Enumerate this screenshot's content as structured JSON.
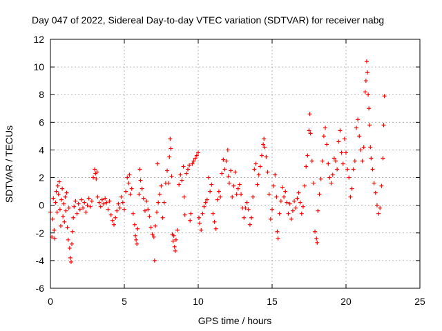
{
  "chart_data": {
    "type": "scatter",
    "title": "Day 047 of 2022, Sidereal Day-to-day VTEC variation (SDTVAR) for receiver nabg",
    "xlabel": "GPS time / hours",
    "ylabel": "SDTVAR / TECUs",
    "xlim": [
      0,
      25
    ],
    "ylim": [
      -6,
      12
    ],
    "xticks": [
      0,
      5,
      10,
      15,
      20,
      25
    ],
    "xtick_labels": [
      "0",
      "5",
      "10",
      "15",
      "20",
      "25"
    ],
    "yticks": [
      -6,
      -4,
      -2,
      0,
      2,
      4,
      6,
      8,
      10,
      12
    ],
    "ytick_labels": [
      "-6",
      "-4",
      "-2",
      "0",
      "2",
      "4",
      "6",
      "8",
      "10",
      "12"
    ],
    "grid": true,
    "marker": "+",
    "color": "#ff0000",
    "series": [
      {
        "name": "SDTVAR",
        "points": [
          [
            0.0,
            -0.5
          ],
          [
            0.1,
            -2.3
          ],
          [
            0.15,
            -1.0
          ],
          [
            0.2,
            0.5
          ],
          [
            0.25,
            -1.8
          ],
          [
            0.3,
            -2.4
          ],
          [
            0.35,
            0.2
          ],
          [
            0.4,
            1.0
          ],
          [
            0.45,
            -0.5
          ],
          [
            0.5,
            1.4
          ],
          [
            0.55,
            0.8
          ],
          [
            0.6,
            1.7
          ],
          [
            0.65,
            -0.3
          ],
          [
            0.7,
            -1.5
          ],
          [
            0.75,
            0.4
          ],
          [
            0.8,
            1.2
          ],
          [
            0.85,
            -0.8
          ],
          [
            0.9,
            0.1
          ],
          [
            0.95,
            -1.2
          ],
          [
            1.0,
            0.6
          ],
          [
            1.05,
            -0.4
          ],
          [
            1.1,
            0.9
          ],
          [
            1.15,
            -1.6
          ],
          [
            1.2,
            -2.5
          ],
          [
            1.25,
            -0.2
          ],
          [
            1.3,
            -3.1
          ],
          [
            1.35,
            -3.8
          ],
          [
            1.4,
            -4.1
          ],
          [
            1.45,
            -2.8
          ],
          [
            1.5,
            -1.9
          ],
          [
            1.55,
            -0.9
          ],
          [
            1.6,
            -0.1
          ],
          [
            1.7,
            0.3
          ],
          [
            1.8,
            -0.6
          ],
          [
            1.9,
            0.1
          ],
          [
            2.0,
            -0.3
          ],
          [
            2.1,
            0.4
          ],
          [
            2.2,
            -0.2
          ],
          [
            2.3,
            0.2
          ],
          [
            2.4,
            -0.5
          ],
          [
            2.5,
            0.0
          ],
          [
            2.6,
            0.5
          ],
          [
            2.7,
            -0.1
          ],
          [
            2.8,
            0.3
          ],
          [
            2.9,
            2.0
          ],
          [
            3.0,
            2.6
          ],
          [
            3.05,
            2.3
          ],
          [
            3.1,
            1.9
          ],
          [
            3.15,
            2.4
          ],
          [
            3.2,
            0.6
          ],
          [
            3.3,
            0.2
          ],
          [
            3.4,
            -0.1
          ],
          [
            3.5,
            0.4
          ],
          [
            3.6,
            0.1
          ],
          [
            3.7,
            0.5
          ],
          [
            3.8,
            0.2
          ],
          [
            3.9,
            -0.3
          ],
          [
            4.0,
            0.3
          ],
          [
            4.1,
            -0.7
          ],
          [
            4.2,
            -1.1
          ],
          [
            4.3,
            -1.4
          ],
          [
            4.4,
            -0.9
          ],
          [
            4.5,
            -0.4
          ],
          [
            4.6,
            0.1
          ],
          [
            4.7,
            -0.2
          ],
          [
            4.8,
            0.6
          ],
          [
            4.9,
            0.2
          ],
          [
            5.0,
            -0.3
          ],
          [
            5.1,
            1.0
          ],
          [
            5.2,
            2.0
          ],
          [
            5.3,
            1.6
          ],
          [
            5.35,
            2.2
          ],
          [
            5.4,
            0.8
          ],
          [
            5.5,
            1.2
          ],
          [
            5.6,
            -0.6
          ],
          [
            5.7,
            -1.4
          ],
          [
            5.75,
            -2.2
          ],
          [
            5.8,
            -2.5
          ],
          [
            5.85,
            -2.8
          ],
          [
            5.9,
            -1.7
          ],
          [
            6.0,
            0.8
          ],
          [
            6.05,
            2.6
          ],
          [
            6.1,
            1.8
          ],
          [
            6.2,
            1.2
          ],
          [
            6.3,
            0.5
          ],
          [
            6.4,
            -0.4
          ],
          [
            6.5,
            0.3
          ],
          [
            6.6,
            -0.3
          ],
          [
            6.7,
            -0.8
          ],
          [
            6.8,
            -1.6
          ],
          [
            6.9,
            -2.1
          ],
          [
            7.0,
            -2.3
          ],
          [
            7.05,
            -4.0
          ],
          [
            7.1,
            -1.5
          ],
          [
            7.2,
            -0.5
          ],
          [
            7.25,
            3.0
          ],
          [
            7.3,
            0.2
          ],
          [
            7.4,
            0.8
          ],
          [
            7.5,
            1.4
          ],
          [
            7.6,
            -0.9
          ],
          [
            7.7,
            0.2
          ],
          [
            7.8,
            1.6
          ],
          [
            7.9,
            2.5
          ],
          [
            8.0,
            1.6
          ],
          [
            8.05,
            3.5
          ],
          [
            8.1,
            4.8
          ],
          [
            8.15,
            4.1
          ],
          [
            8.2,
            2.1
          ],
          [
            8.25,
            -2.1
          ],
          [
            8.3,
            -2.6
          ],
          [
            8.35,
            -2.2
          ],
          [
            8.4,
            -3.0
          ],
          [
            8.45,
            -3.3
          ],
          [
            8.5,
            -2.5
          ],
          [
            8.6,
            -1.8
          ],
          [
            8.7,
            1.5
          ],
          [
            8.8,
            2.2
          ],
          [
            8.9,
            1.8
          ],
          [
            9.0,
            2.8
          ],
          [
            9.05,
            0.6
          ],
          [
            9.1,
            -0.7
          ],
          [
            9.2,
            2.3
          ],
          [
            9.3,
            2.6
          ],
          [
            9.4,
            2.9
          ],
          [
            9.45,
            -1.1
          ],
          [
            9.5,
            -0.6
          ],
          [
            9.6,
            3.0
          ],
          [
            9.7,
            3.2
          ],
          [
            9.8,
            3.4
          ],
          [
            9.9,
            3.6
          ],
          [
            10.0,
            3.8
          ],
          [
            10.05,
            -0.9
          ],
          [
            10.1,
            -1.3
          ],
          [
            10.2,
            -1.8
          ],
          [
            10.3,
            -0.6
          ],
          [
            10.4,
            -0.1
          ],
          [
            10.5,
            0.2
          ],
          [
            10.6,
            0.4
          ],
          [
            10.7,
            2.0
          ],
          [
            10.8,
            1.0
          ],
          [
            10.9,
            1.5
          ],
          [
            11.0,
            -0.6
          ],
          [
            11.1,
            -1.2
          ],
          [
            11.2,
            -1.7
          ],
          [
            11.3,
            0.4
          ],
          [
            11.4,
            1.0
          ],
          [
            11.5,
            0.6
          ],
          [
            11.6,
            2.3
          ],
          [
            11.7,
            3.3
          ],
          [
            11.8,
            2.6
          ],
          [
            11.9,
            3.2
          ],
          [
            12.0,
            4.0
          ],
          [
            12.05,
            2.1
          ],
          [
            12.1,
            1.6
          ],
          [
            12.2,
            2.5
          ],
          [
            12.3,
            0.6
          ],
          [
            12.4,
            1.4
          ],
          [
            12.5,
            2.4
          ],
          [
            12.6,
            0.8
          ],
          [
            12.7,
            1.2
          ],
          [
            12.8,
            1.5
          ],
          [
            12.9,
            0.8
          ],
          [
            13.0,
            -0.2
          ],
          [
            13.1,
            -0.9
          ],
          [
            13.2,
            -0.2
          ],
          [
            13.3,
            0.2
          ],
          [
            13.4,
            -0.3
          ],
          [
            13.5,
            -1.4
          ],
          [
            13.6,
            -0.9
          ],
          [
            13.7,
            0.6
          ],
          [
            13.8,
            2.6
          ],
          [
            13.9,
            3.0
          ],
          [
            14.0,
            1.5
          ],
          [
            14.1,
            2.2
          ],
          [
            14.2,
            2.8
          ],
          [
            14.3,
            3.6
          ],
          [
            14.4,
            4.4
          ],
          [
            14.45,
            4.8
          ],
          [
            14.5,
            4.2
          ],
          [
            14.6,
            3.5
          ],
          [
            14.7,
            2.4
          ],
          [
            14.8,
            0.8
          ],
          [
            14.9,
            -1.0
          ],
          [
            15.0,
            -0.3
          ],
          [
            15.1,
            1.4
          ],
          [
            15.2,
            2.2
          ],
          [
            15.3,
            0.6
          ],
          [
            15.35,
            -1.9
          ],
          [
            15.4,
            -2.4
          ],
          [
            15.5,
            -0.6
          ],
          [
            15.6,
            0.3
          ],
          [
            15.7,
            1.3
          ],
          [
            15.8,
            0.6
          ],
          [
            15.9,
            1.0
          ],
          [
            16.0,
            0.2
          ],
          [
            16.1,
            -0.6
          ],
          [
            16.2,
            0.1
          ],
          [
            16.3,
            -1.0
          ],
          [
            16.4,
            -0.4
          ],
          [
            16.5,
            0.3
          ],
          [
            16.6,
            -0.2
          ],
          [
            16.7,
            0.5
          ],
          [
            16.8,
            0.9
          ],
          [
            16.9,
            0.2
          ],
          [
            17.0,
            -0.6
          ],
          [
            17.1,
            -0.1
          ],
          [
            17.2,
            1.4
          ],
          [
            17.3,
            2.8
          ],
          [
            17.4,
            3.6
          ],
          [
            17.5,
            5.4
          ],
          [
            17.55,
            6.6
          ],
          [
            17.6,
            5.2
          ],
          [
            17.7,
            3.2
          ],
          [
            17.8,
            1.6
          ],
          [
            17.9,
            -1.9
          ],
          [
            18.0,
            -2.4
          ],
          [
            18.05,
            -2.7
          ],
          [
            18.1,
            -0.4
          ],
          [
            18.2,
            0.8
          ],
          [
            18.3,
            1.9
          ],
          [
            18.4,
            3.2
          ],
          [
            18.5,
            5.0
          ],
          [
            18.6,
            5.6
          ],
          [
            18.7,
            4.4
          ],
          [
            18.8,
            3.0
          ],
          [
            18.9,
            2.0
          ],
          [
            19.0,
            1.6
          ],
          [
            19.1,
            2.2
          ],
          [
            19.2,
            3.4
          ],
          [
            19.3,
            3.2
          ],
          [
            19.4,
            2.6
          ],
          [
            19.5,
            4.6
          ],
          [
            19.6,
            5.4
          ],
          [
            19.7,
            3.8
          ],
          [
            19.8,
            3.0
          ],
          [
            19.9,
            4.8
          ],
          [
            20.0,
            3.8
          ],
          [
            20.1,
            2.6
          ],
          [
            20.2,
            2.0
          ],
          [
            20.3,
            0.6
          ],
          [
            20.4,
            1.2
          ],
          [
            20.5,
            2.6
          ],
          [
            20.6,
            3.2
          ],
          [
            20.7,
            5.6
          ],
          [
            20.8,
            6.2
          ],
          [
            20.9,
            5.0
          ],
          [
            21.0,
            4.0
          ],
          [
            21.1,
            3.2
          ],
          [
            21.2,
            4.2
          ],
          [
            21.3,
            8.2
          ],
          [
            21.35,
            9.0
          ],
          [
            21.4,
            10.4
          ],
          [
            21.45,
            9.6
          ],
          [
            21.5,
            8.0
          ],
          [
            21.55,
            7.0
          ],
          [
            21.6,
            5.8
          ],
          [
            21.65,
            4.2
          ],
          [
            21.7,
            3.4
          ],
          [
            21.8,
            2.6
          ],
          [
            21.9,
            1.6
          ],
          [
            22.0,
            0.9
          ],
          [
            22.1,
            0.0
          ],
          [
            22.2,
            -0.6
          ],
          [
            22.3,
            -0.2
          ],
          [
            22.4,
            1.4
          ],
          [
            22.5,
            3.4
          ],
          [
            22.55,
            5.8
          ],
          [
            22.6,
            7.9
          ]
        ]
      }
    ]
  }
}
